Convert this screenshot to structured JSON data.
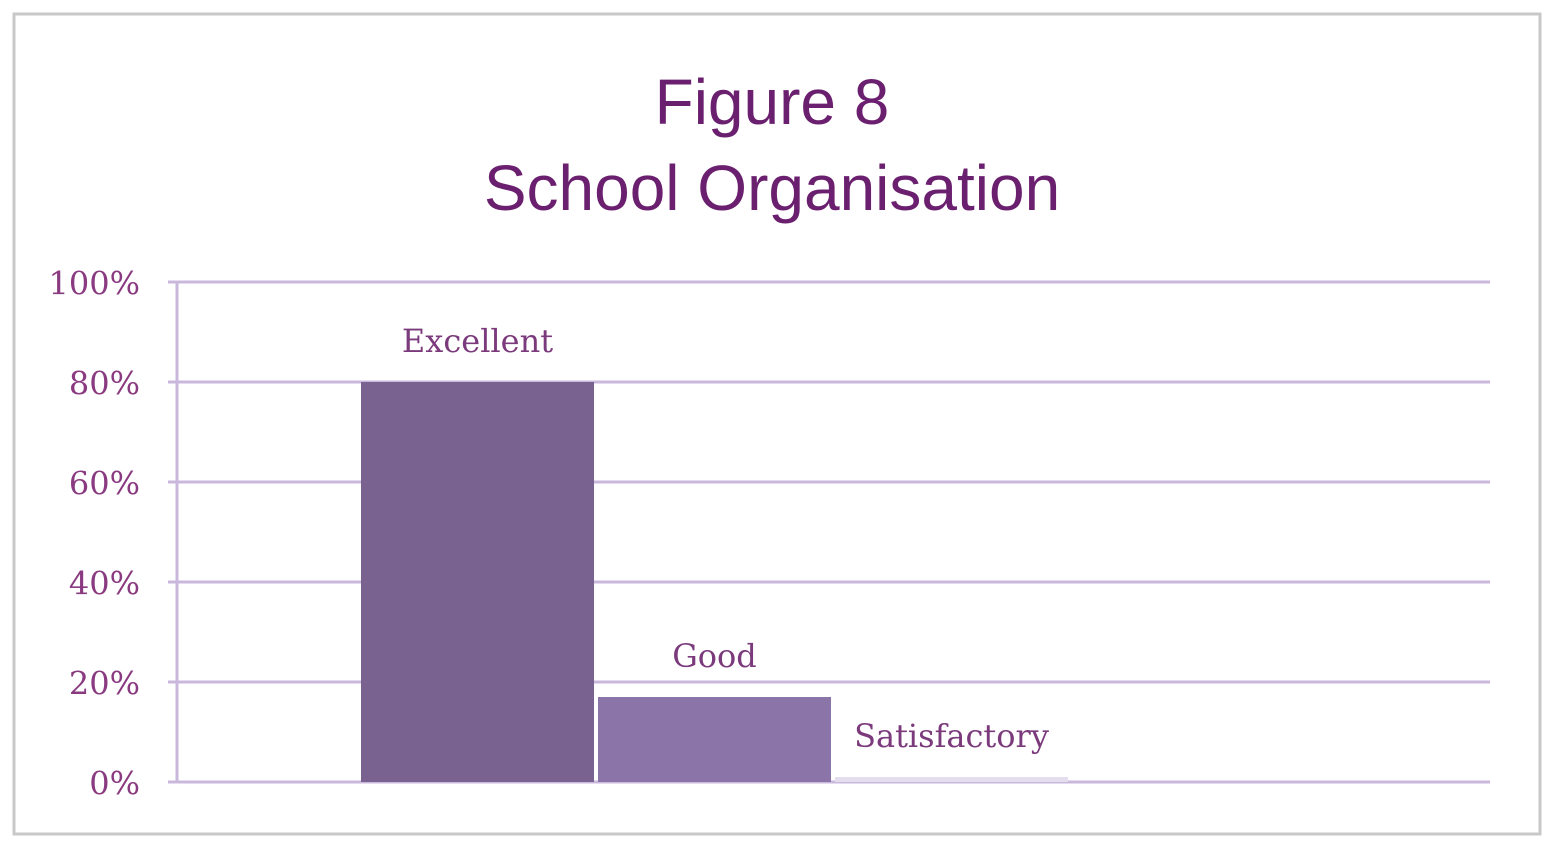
{
  "chart_data": {
    "type": "bar",
    "title": "Figure 8",
    "subtitle": "School Organisation",
    "categories": [
      "Excellent",
      "Good",
      "Satisfactory"
    ],
    "values": [
      80,
      17,
      1
    ],
    "colors": [
      "#79628f",
      "#8a74a8",
      "#e4ddee"
    ],
    "ylim": [
      0,
      100
    ],
    "yticks": [
      {
        "value": 0,
        "label": "0%"
      },
      {
        "value": 20,
        "label": "20%"
      },
      {
        "value": 40,
        "label": "40%"
      },
      {
        "value": 60,
        "label": "60%"
      },
      {
        "value": 80,
        "label": "80%"
      },
      {
        "value": 100,
        "label": "100%"
      }
    ],
    "grid": true
  }
}
